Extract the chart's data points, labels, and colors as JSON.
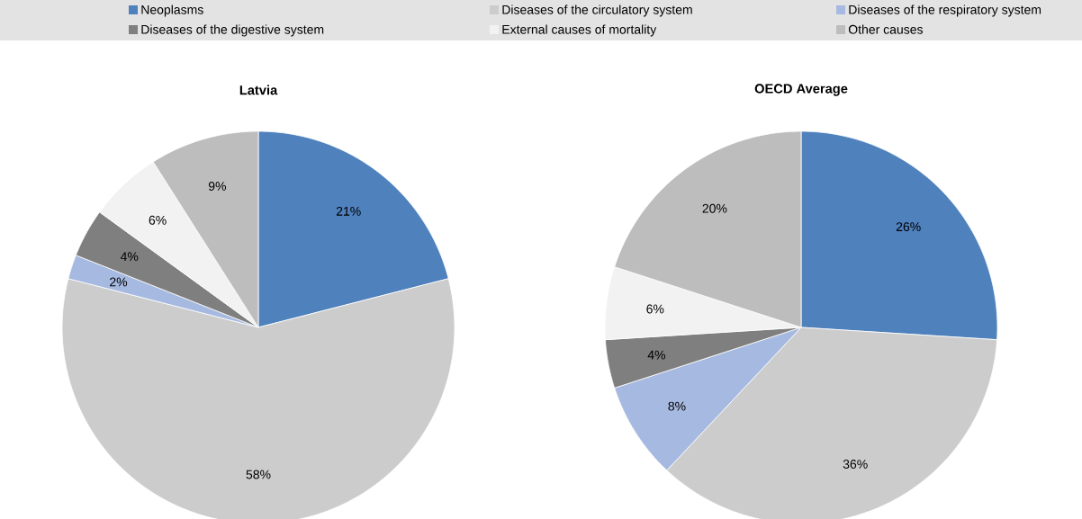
{
  "chart_data": [
    {
      "type": "pie",
      "title": "Latvia",
      "legend": "top",
      "categories": [
        "Neoplasms",
        "Diseases of the circulatory system",
        "Diseases of the respiratory system",
        "Diseases of the digestive system",
        "External causes of mortality",
        "Other causes"
      ],
      "values": [
        21,
        58,
        2,
        4,
        6,
        9
      ],
      "value_labels": [
        "21%",
        "58%",
        "2%",
        "4%",
        "6%",
        "9%"
      ],
      "colors": [
        "#4f81bd",
        "#cccccc",
        "#a6b9e0",
        "#7f7f7f",
        "#f2f2f2",
        "#bdbdbd"
      ]
    },
    {
      "type": "pie",
      "title": "OECD Average",
      "values": [
        26,
        36,
        8,
        4,
        6,
        20
      ],
      "value_labels": [
        "26%",
        "36%",
        "8%",
        "4%",
        "6%",
        "20%"
      ],
      "colors": [
        "#4f81bd",
        "#cccccc",
        "#a6b9e0",
        "#7f7f7f",
        "#f2f2f2",
        "#bdbdbd"
      ]
    }
  ]
}
